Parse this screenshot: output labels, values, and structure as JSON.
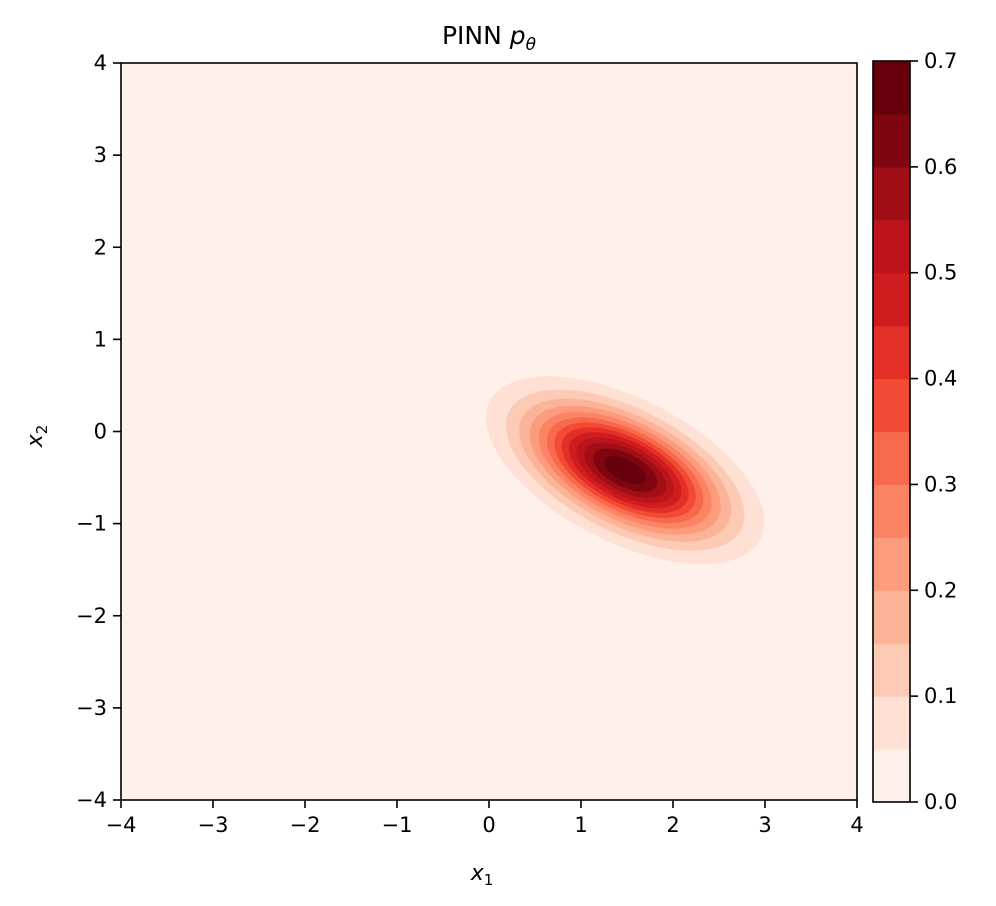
{
  "chart_data": {
    "type": "heatmap",
    "title": {
      "main": "PINN",
      "var": "p",
      "sub": "θ"
    },
    "xlabel": {
      "var": "x",
      "sub": "1"
    },
    "ylabel": {
      "var": "x",
      "sub": "2"
    },
    "xlim": [
      -4,
      4
    ],
    "ylim": [
      -4,
      4
    ],
    "xticks": [
      "−4",
      "−3",
      "−2",
      "−1",
      "0",
      "1",
      "2",
      "3",
      "4"
    ],
    "yticks": [
      "−4",
      "−3",
      "−2",
      "−1",
      "0",
      "1",
      "2",
      "3",
      "4"
    ],
    "xtick_values": [
      -4,
      -3,
      -2,
      -1,
      0,
      1,
      2,
      3,
      4
    ],
    "ytick_values": [
      -4,
      -3,
      -2,
      -1,
      0,
      1,
      2,
      3,
      4
    ],
    "grid": false,
    "colormap": "Reds",
    "colorbar": {
      "range": [
        0.0,
        0.7
      ],
      "ticks": [
        "0.0",
        "0.1",
        "0.2",
        "0.3",
        "0.4",
        "0.5",
        "0.6",
        "0.7"
      ],
      "tick_values": [
        0.0,
        0.1,
        0.2,
        0.3,
        0.4,
        0.5,
        0.6,
        0.7
      ],
      "levels": [
        0.0,
        0.05,
        0.1,
        0.15,
        0.2,
        0.25,
        0.3,
        0.35,
        0.4,
        0.45,
        0.5,
        0.55,
        0.6,
        0.65,
        0.7
      ],
      "colors": [
        "#fff0e9",
        "#fee1d4",
        "#fdcab5",
        "#fcb499",
        "#fc9c7d",
        "#fb8464",
        "#f86a4d",
        "#f24a35",
        "#e32f27",
        "#cf1c1f",
        "#bc141a",
        "#a10e15",
        "#7f0610",
        "#67000d"
      ]
    },
    "distribution": {
      "kind": "gaussian",
      "mean": [
        1.48,
        -0.42
      ],
      "peak": 0.69,
      "major_axis_angle_deg": -27,
      "sigma_major": 0.72,
      "sigma_minor": 0.34
    }
  }
}
